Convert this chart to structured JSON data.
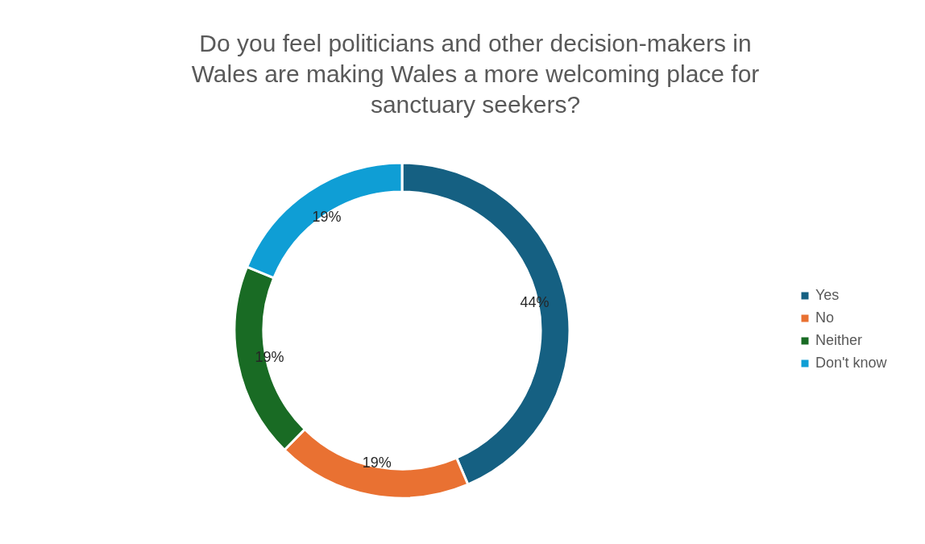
{
  "chart_data": {
    "type": "donut",
    "title": "Do you feel politicians and other decision-makers in Wales are making Wales a more welcoming place for sanctuary seekers?",
    "categories": [
      "Yes",
      "No",
      "Neither",
      "Don't know"
    ],
    "values": [
      44,
      19,
      19,
      19
    ],
    "value_labels": [
      "44%",
      "19%",
      "19%",
      "19%"
    ],
    "colors": [
      "#156082",
      "#e97132",
      "#196b24",
      "#0f9ed5"
    ],
    "legend": "right"
  }
}
